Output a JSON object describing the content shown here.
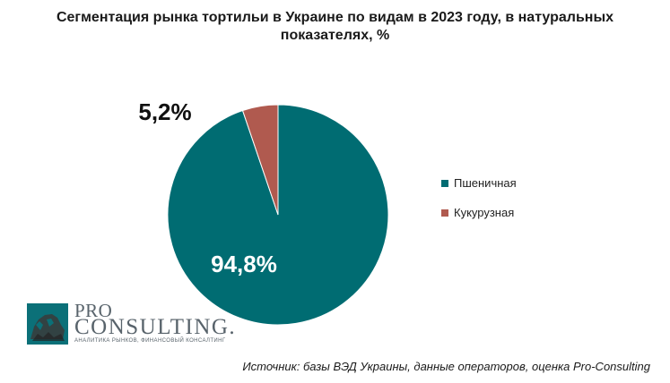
{
  "chart_data": {
    "type": "pie",
    "title": "Сегментация рынка тортильи в Украине по видам в 2023 году, в натуральных показателях, %",
    "categories": [
      "Пшеничная",
      "Кукурузная"
    ],
    "values": [
      94.8,
      5.2
    ],
    "value_labels": [
      "94,8%",
      "5,2%"
    ],
    "colors": [
      "#006c72",
      "#b05a4f"
    ],
    "legend_position": "right"
  },
  "logo": {
    "line1": "PRO",
    "line2": "CONSULTING.",
    "tagline": "АНАЛИТИКА РЫНКОВ, ФИНАНСОВЫЙ КОНСАЛТИНГ"
  },
  "source": "Источник: базы ВЭД Украины, данные операторов, оценка Pro-Consulting"
}
